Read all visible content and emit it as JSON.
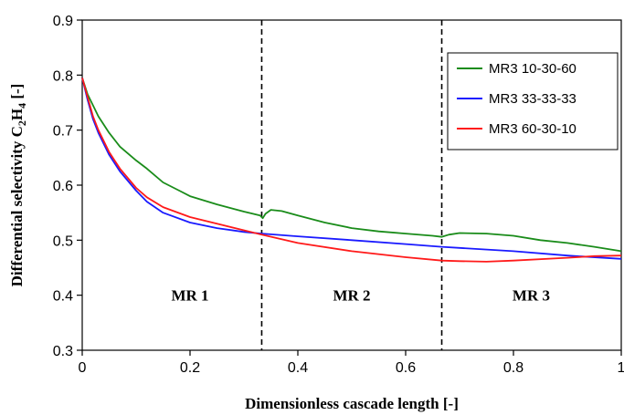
{
  "chart_data": {
    "type": "line",
    "title": "",
    "xlabel": "Dimensionless cascade length [-]",
    "ylabel_main": "Differential selectivity C",
    "ylabel_sub1": "2",
    "ylabel_mid": "H",
    "ylabel_sub2": "4",
    "ylabel_tail": " [-]",
    "xlim": [
      0,
      1
    ],
    "ylim": [
      0.3,
      0.9
    ],
    "x_ticks": [
      0,
      0.2,
      0.4,
      0.6,
      0.8,
      1
    ],
    "x_tick_labels": [
      "0",
      "0.2",
      "0.4",
      "0.6",
      "0.8",
      "1"
    ],
    "y_ticks": [
      0.3,
      0.4,
      0.5,
      0.6,
      0.7,
      0.8,
      0.9
    ],
    "y_tick_labels": [
      "0.3",
      "0.4",
      "0.5",
      "0.6",
      "0.7",
      "0.8",
      "0.9"
    ],
    "grid": false,
    "legend_position": "top-right",
    "dividers": [
      0.333,
      0.667
    ],
    "regions": [
      {
        "label": "MR 1",
        "x": 0.2,
        "y": 0.4
      },
      {
        "label": "MR 2",
        "x": 0.5,
        "y": 0.4
      },
      {
        "label": "MR 3",
        "x": 0.833,
        "y": 0.4
      }
    ],
    "series": [
      {
        "name": "MR3 10-30-60",
        "color": "#1a8c1a",
        "x": [
          0,
          0.01,
          0.02,
          0.03,
          0.05,
          0.07,
          0.1,
          0.12,
          0.15,
          0.18,
          0.2,
          0.25,
          0.3,
          0.33,
          0.335,
          0.34,
          0.35,
          0.37,
          0.4,
          0.45,
          0.5,
          0.55,
          0.6,
          0.65,
          0.667,
          0.67,
          0.68,
          0.7,
          0.75,
          0.8,
          0.85,
          0.9,
          0.95,
          1.0
        ],
        "y": [
          0.795,
          0.765,
          0.745,
          0.725,
          0.695,
          0.67,
          0.645,
          0.63,
          0.605,
          0.59,
          0.58,
          0.565,
          0.552,
          0.545,
          0.54,
          0.548,
          0.555,
          0.553,
          0.545,
          0.532,
          0.522,
          0.516,
          0.512,
          0.508,
          0.506,
          0.507,
          0.51,
          0.513,
          0.512,
          0.508,
          0.5,
          0.495,
          0.488,
          0.48
        ]
      },
      {
        "name": "MR3 33-33-33",
        "color": "#1a1aff",
        "x": [
          0,
          0.01,
          0.02,
          0.03,
          0.05,
          0.07,
          0.1,
          0.12,
          0.15,
          0.2,
          0.25,
          0.3,
          0.333,
          0.4,
          0.5,
          0.6,
          0.667,
          0.7,
          0.8,
          0.9,
          1.0
        ],
        "y": [
          0.795,
          0.755,
          0.72,
          0.695,
          0.655,
          0.625,
          0.59,
          0.57,
          0.55,
          0.532,
          0.522,
          0.515,
          0.512,
          0.507,
          0.5,
          0.493,
          0.488,
          0.486,
          0.48,
          0.472,
          0.466
        ]
      },
      {
        "name": "MR3 60-30-10",
        "color": "#ff1a1a",
        "x": [
          0,
          0.01,
          0.02,
          0.03,
          0.05,
          0.07,
          0.1,
          0.12,
          0.15,
          0.2,
          0.25,
          0.3,
          0.333,
          0.4,
          0.5,
          0.6,
          0.667,
          0.7,
          0.75,
          0.8,
          0.9,
          0.95,
          1.0
        ],
        "y": [
          0.795,
          0.76,
          0.725,
          0.7,
          0.66,
          0.63,
          0.595,
          0.578,
          0.56,
          0.542,
          0.53,
          0.518,
          0.51,
          0.495,
          0.48,
          0.469,
          0.463,
          0.462,
          0.461,
          0.463,
          0.468,
          0.471,
          0.472
        ]
      }
    ]
  }
}
